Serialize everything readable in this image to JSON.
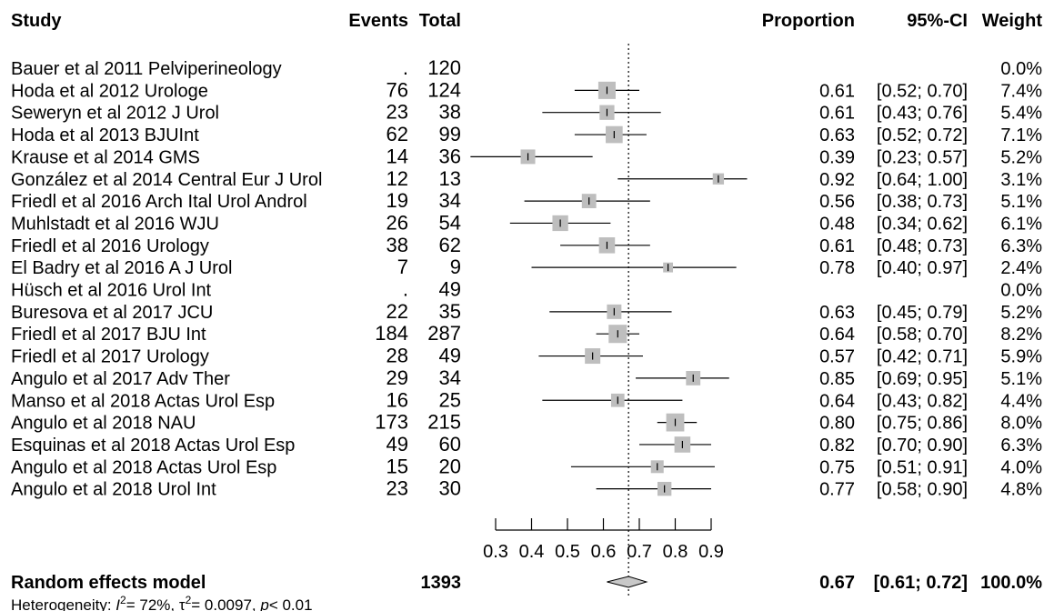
{
  "headers": {
    "study": "Study",
    "events": "Events",
    "total": "Total",
    "proportion": "Proportion",
    "ci": "95%-CI",
    "weight": "Weight"
  },
  "chart_data": {
    "type": "forest",
    "xlim": [
      0.3,
      0.9
    ],
    "x_ticks": [
      "0.3",
      "0.4",
      "0.5",
      "0.6",
      "0.7",
      "0.8",
      "0.9"
    ],
    "reference_line": 0.67,
    "studies": [
      {
        "study": "Bauer et al 2011 Pelviperineology",
        "events": ".",
        "total": "120",
        "proportion": "",
        "ci": "",
        "weight": "0.0%",
        "est": null,
        "lo": null,
        "hi": null,
        "w": 0
      },
      {
        "study": "Hoda et al 2012 Urologe",
        "events": "76",
        "total": "124",
        "proportion": "0.61",
        "ci": "[0.52; 0.70]",
        "weight": "7.4%",
        "est": 0.61,
        "lo": 0.52,
        "hi": 0.7,
        "w": 7.4
      },
      {
        "study": "Seweryn et al 2012 J Urol",
        "events": "23",
        "total": "38",
        "proportion": "0.61",
        "ci": "[0.43; 0.76]",
        "weight": "5.4%",
        "est": 0.61,
        "lo": 0.43,
        "hi": 0.76,
        "w": 5.4
      },
      {
        "study": "Hoda et al 2013 BJUInt",
        "events": "62",
        "total": "99",
        "proportion": "0.63",
        "ci": "[0.52; 0.72]",
        "weight": "7.1%",
        "est": 0.63,
        "lo": 0.52,
        "hi": 0.72,
        "w": 7.1
      },
      {
        "study": "Krause et al 2014 GMS",
        "events": "14",
        "total": "36",
        "proportion": "0.39",
        "ci": "[0.23; 0.57]",
        "weight": "5.2%",
        "est": 0.39,
        "lo": 0.23,
        "hi": 0.57,
        "w": 5.2
      },
      {
        "study": "González et al 2014 Central Eur J Urol",
        "events": "12",
        "total": "13",
        "proportion": "0.92",
        "ci": "[0.64; 1.00]",
        "weight": "3.1%",
        "est": 0.92,
        "lo": 0.64,
        "hi": 1.0,
        "w": 3.1
      },
      {
        "study": "Friedl et al 2016 Arch Ital Urol Androl",
        "events": "19",
        "total": "34",
        "proportion": "0.56",
        "ci": "[0.38; 0.73]",
        "weight": "5.1%",
        "est": 0.56,
        "lo": 0.38,
        "hi": 0.73,
        "w": 5.1
      },
      {
        "study": "Muhlstadt et al 2016 WJU",
        "events": "26",
        "total": "54",
        "proportion": "0.48",
        "ci": "[0.34; 0.62]",
        "weight": "6.1%",
        "est": 0.48,
        "lo": 0.34,
        "hi": 0.62,
        "w": 6.1
      },
      {
        "study": "Friedl et al 2016 Urology",
        "events": "38",
        "total": "62",
        "proportion": "0.61",
        "ci": "[0.48; 0.73]",
        "weight": "6.3%",
        "est": 0.61,
        "lo": 0.48,
        "hi": 0.73,
        "w": 6.3
      },
      {
        "study": "El Badry et al 2016 A J Urol",
        "events": "7",
        "total": "9",
        "proportion": "0.78",
        "ci": "[0.40; 0.97]",
        "weight": "2.4%",
        "est": 0.78,
        "lo": 0.4,
        "hi": 0.97,
        "w": 2.4
      },
      {
        "study": "Hüsch et al 2016  Urol Int",
        "events": ".",
        "total": "49",
        "proportion": "",
        "ci": "",
        "weight": "0.0%",
        "est": null,
        "lo": null,
        "hi": null,
        "w": 0
      },
      {
        "study": "Buresova et al 2017 JCU",
        "events": "22",
        "total": "35",
        "proportion": "0.63",
        "ci": "[0.45; 0.79]",
        "weight": "5.2%",
        "est": 0.63,
        "lo": 0.45,
        "hi": 0.79,
        "w": 5.2
      },
      {
        "study": "Friedl et al 2017 BJU Int",
        "events": "184",
        "total": "287",
        "proportion": "0.64",
        "ci": "[0.58; 0.70]",
        "weight": "8.2%",
        "est": 0.64,
        "lo": 0.58,
        "hi": 0.7,
        "w": 8.2
      },
      {
        "study": "Friedl et al 2017 Urology",
        "events": "28",
        "total": "49",
        "proportion": "0.57",
        "ci": "[0.42; 0.71]",
        "weight": "5.9%",
        "est": 0.57,
        "lo": 0.42,
        "hi": 0.71,
        "w": 5.9
      },
      {
        "study": "Angulo et al 2017 Adv Ther",
        "events": "29",
        "total": "34",
        "proportion": "0.85",
        "ci": "[0.69; 0.95]",
        "weight": "5.1%",
        "est": 0.85,
        "lo": 0.69,
        "hi": 0.95,
        "w": 5.1
      },
      {
        "study": "Manso et al 2018 Actas Urol Esp",
        "events": "16",
        "total": "25",
        "proportion": "0.64",
        "ci": "[0.43; 0.82]",
        "weight": "4.4%",
        "est": 0.64,
        "lo": 0.43,
        "hi": 0.82,
        "w": 4.4
      },
      {
        "study": "Angulo et al 2018 NAU",
        "events": "173",
        "total": "215",
        "proportion": "0.80",
        "ci": "[0.75; 0.86]",
        "weight": "8.0%",
        "est": 0.8,
        "lo": 0.75,
        "hi": 0.86,
        "w": 8.0
      },
      {
        "study": "Esquinas et al 2018 Actas Urol Esp",
        "events": "49",
        "total": "60",
        "proportion": "0.82",
        "ci": "[0.70; 0.90]",
        "weight": "6.3%",
        "est": 0.82,
        "lo": 0.7,
        "hi": 0.9,
        "w": 6.3
      },
      {
        "study": "Angulo et al 2018 Actas Urol Esp",
        "events": "15",
        "total": "20",
        "proportion": "0.75",
        "ci": "[0.51; 0.91]",
        "weight": "4.0%",
        "est": 0.75,
        "lo": 0.51,
        "hi": 0.91,
        "w": 4.0
      },
      {
        "study": "Angulo et al 2018 Urol Int",
        "events": "23",
        "total": "30",
        "proportion": "0.77",
        "ci": "[0.58; 0.90]",
        "weight": "4.8%",
        "est": 0.77,
        "lo": 0.58,
        "hi": 0.9,
        "w": 4.8
      }
    ],
    "summary": {
      "label": "Random effects model",
      "total": "1393",
      "proportion": "0.67",
      "ci": "[0.61; 0.72]",
      "weight": "100.0%",
      "est": 0.67,
      "lo": 0.61,
      "hi": 0.72
    },
    "heterogeneity": {
      "prefix": "Heterogeneity: ",
      "i2_symbol": "I",
      "i2_value": "= 72%, ",
      "tau_symbol": "τ",
      "tau_value": "= 0.0097, ",
      "p_symbol": "p",
      "p_value": "< 0.01",
      "sup": "2"
    },
    "colors": {
      "box": "#bebebe",
      "diamond": "#c8c8c8",
      "line": "#000000"
    }
  }
}
